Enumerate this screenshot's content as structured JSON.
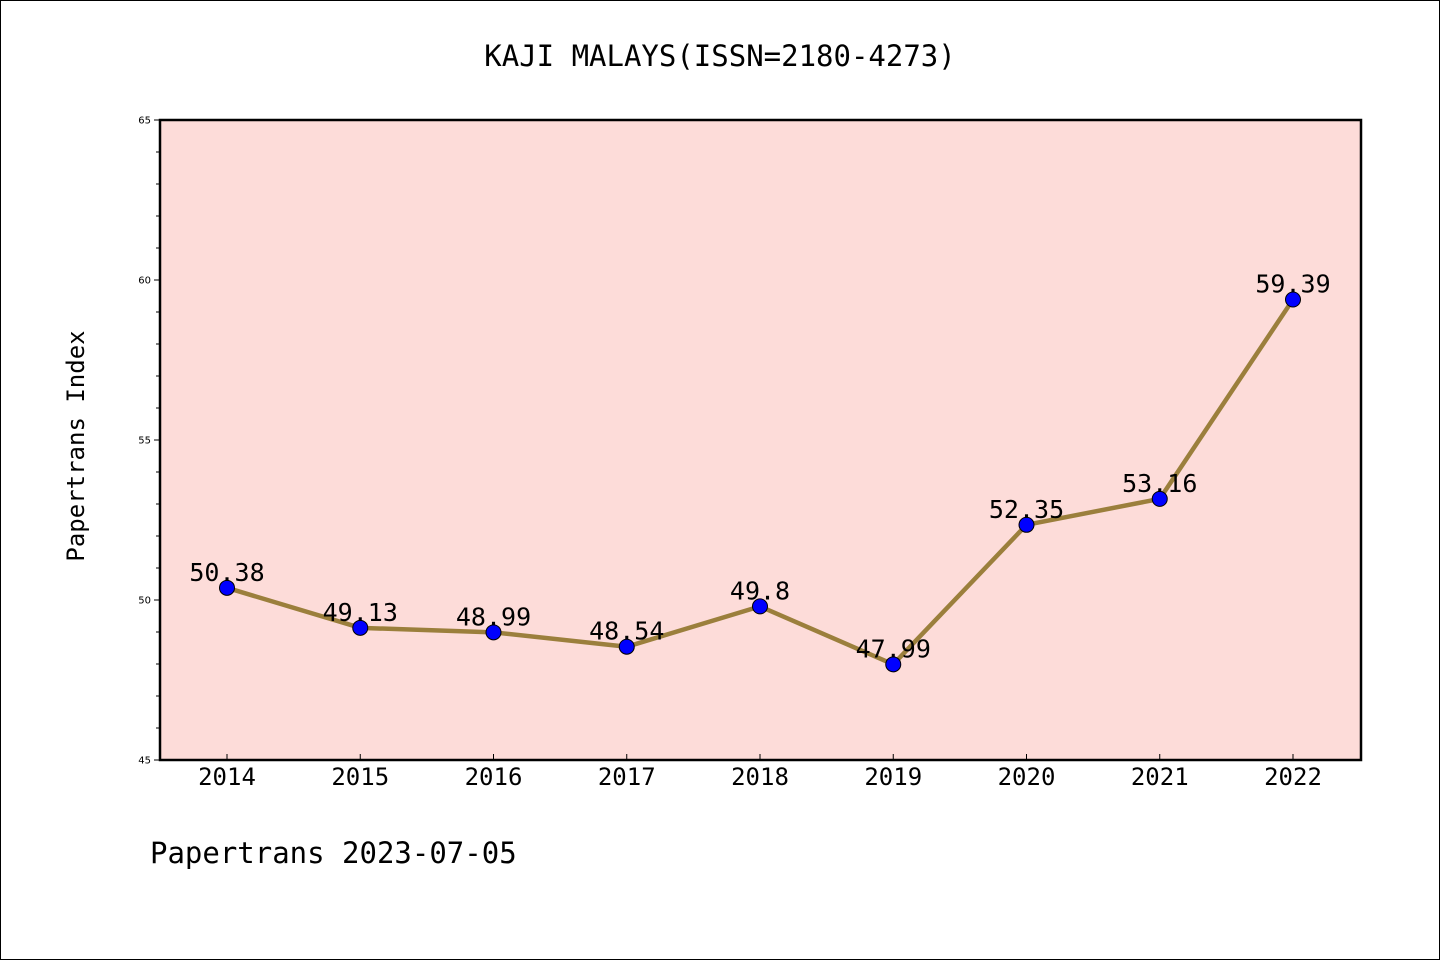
{
  "chart_data": {
    "type": "line",
    "title": "KAJI MALAYS(ISSN=2180-4273)",
    "ylabel": "Papertrans Index",
    "xlabel": "",
    "categories": [
      "2014",
      "2015",
      "2016",
      "2017",
      "2018",
      "2019",
      "2020",
      "2021",
      "2022"
    ],
    "series": [
      {
        "values": [
          50.38,
          49.13,
          48.99,
          48.54,
          49.8,
          47.99,
          52.35,
          53.16,
          59.39
        ],
        "data_labels": [
          "50.38",
          "49.13",
          "48.99",
          "48.54",
          "49.8",
          "47.99",
          "52.35",
          "53.16",
          "59.39"
        ],
        "line_color": "#9b7f3c",
        "marker_color": "#0000ff"
      }
    ],
    "ylim": [
      45,
      65
    ],
    "yticks": [
      "45",
      "50",
      "55",
      "60",
      "65"
    ],
    "plot_background": "#fddcd9",
    "grid": false,
    "legend": "none"
  },
  "footer": {
    "caption": "Papertrans 2023-07-05"
  }
}
